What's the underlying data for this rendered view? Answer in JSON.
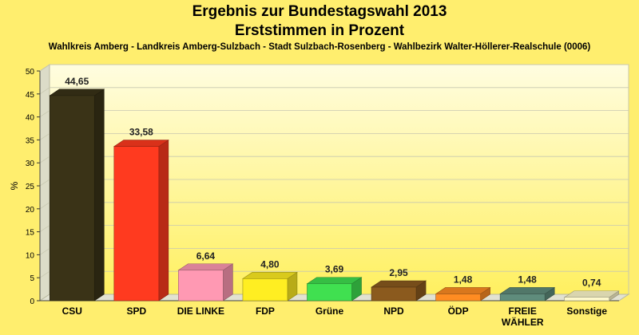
{
  "chart_data": {
    "type": "bar",
    "title": "Ergebnis zur Bundestagswahl 2013",
    "title2": "Erststimmen in Prozent",
    "subtitle": "Wahlkreis Amberg - Landkreis Amberg-Sulzbach - Stadt Sulzbach-Rosenberg - Wahlbezirk Walter-Höllerer-Realschule (0006)",
    "ylabel": "%",
    "xlabel": "",
    "ylim": [
      0,
      50
    ],
    "yticks": [
      "0",
      "5",
      "10",
      "15",
      "20",
      "25",
      "30",
      "35",
      "40",
      "45",
      "50"
    ],
    "grid": true,
    "categories": [
      "CSU",
      "SPD",
      "DIE LINKE",
      "FDP",
      "Grüne",
      "NPD",
      "ÖDP",
      "FREIE WÄHLER",
      "Sonstige"
    ],
    "category_lines": [
      [
        "CSU"
      ],
      [
        "SPD"
      ],
      [
        "DIE LINKE"
      ],
      [
        "FDP"
      ],
      [
        "Grüne"
      ],
      [
        "NPD"
      ],
      [
        "ÖDP"
      ],
      [
        "FREIE",
        "WÄHLER"
      ],
      [
        "Sonstige"
      ]
    ],
    "values": [
      44.65,
      33.58,
      6.64,
      4.8,
      3.69,
      2.95,
      1.48,
      1.48,
      0.74
    ],
    "value_labels": [
      "44,65",
      "33,58",
      "6,64",
      "4,80",
      "3,69",
      "2,95",
      "1,48",
      "1,48",
      "0,74"
    ],
    "colors": [
      "#3a3317",
      "#ff3a1f",
      "#ff99b3",
      "#ffee22",
      "#40e050",
      "#8b5a1e",
      "#ff8c22",
      "#5f8c7c",
      "#fffacd"
    ]
  }
}
